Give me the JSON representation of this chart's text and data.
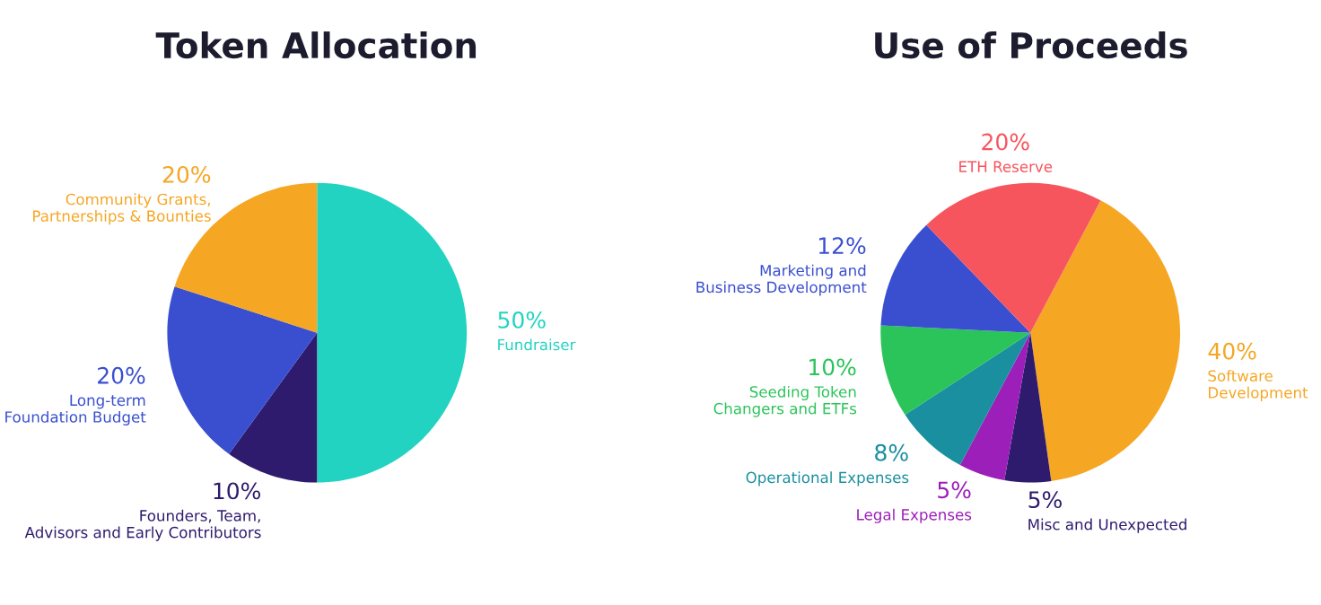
{
  "chart_data": [
    {
      "type": "pie",
      "title": "Token Allocation",
      "categories": [
        "Fundraiser",
        "Founders, Team,\nAdvisors and Early Contributors",
        "Long-term\nFoundation Budget",
        "Community Grants,\nPartnerships & Bounties"
      ],
      "values": [
        50,
        10,
        20,
        20
      ],
      "value_labels": [
        "50%",
        "10%",
        "20%",
        "20%"
      ],
      "colors": [
        "#22d3c1",
        "#2f1b6e",
        "#3a4fd0",
        "#f5a623"
      ]
    },
    {
      "type": "pie",
      "title": "Use of Proceeds",
      "categories": [
        "Software\nDevelopment",
        "Misc and Unexpected",
        "Legal Expenses",
        "Operational Expenses",
        "Seeding Token\nChangers and ETFs",
        "Marketing and\nBusiness Development",
        "ETH Reserve"
      ],
      "values": [
        40,
        5,
        5,
        8,
        10,
        12,
        20
      ],
      "value_labels": [
        "40%",
        "5%",
        "5%",
        "8%",
        "10%",
        "12%",
        "20%"
      ],
      "colors": [
        "#f5a623",
        "#2f1b6e",
        "#9b1fb8",
        "#1a8fa0",
        "#2bc45a",
        "#3a4fd0",
        "#f7555e"
      ]
    }
  ]
}
